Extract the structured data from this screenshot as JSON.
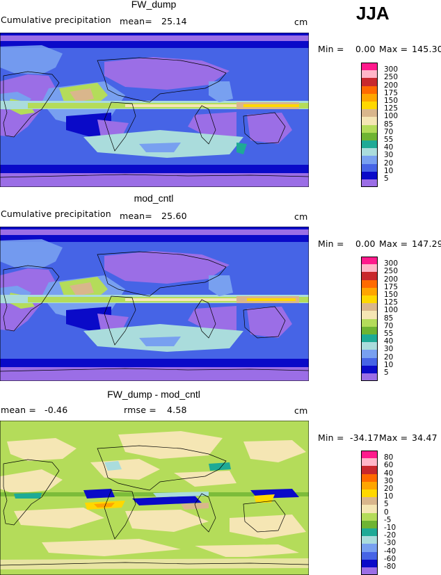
{
  "season": "JJA",
  "chart_data": [
    {
      "type": "heatmap",
      "title": "FW_dump",
      "subtitle": "Cumulative precipitation",
      "mean_label": "mean=",
      "mean_value": "25.14",
      "unit": "cm",
      "min_label": "Min =",
      "min_value": "0.00",
      "max_label": "Max =",
      "max_value": "145.30",
      "colorbar": {
        "levels": [
          "300",
          "250",
          "200",
          "175",
          "150",
          "125",
          "100",
          "85",
          "70",
          "55",
          "40",
          "30",
          "20",
          "10",
          "5"
        ],
        "colors": [
          "#ff1a8c",
          "#ffb6c8",
          "#c8282d",
          "#ff6a00",
          "#ffa500",
          "#ffd800",
          "#d9b68c",
          "#f5e6b4",
          "#b4dc5a",
          "#6eb432",
          "#1eaa96",
          "#aadcdc",
          "#78a0f0",
          "#4664e6",
          "#0a0ac8",
          "#9b6ee6"
        ]
      }
    },
    {
      "type": "heatmap",
      "title": "mod_cntl",
      "subtitle": "Cumulative precipitation",
      "mean_label": "mean=",
      "mean_value": "25.60",
      "unit": "cm",
      "min_label": "Min =",
      "min_value": "0.00",
      "max_label": "Max =",
      "max_value": "147.29",
      "colorbar": {
        "levels": [
          "300",
          "250",
          "200",
          "175",
          "150",
          "125",
          "100",
          "85",
          "70",
          "55",
          "40",
          "30",
          "20",
          "10",
          "5"
        ],
        "colors": [
          "#ff1a8c",
          "#ffb6c8",
          "#c8282d",
          "#ff6a00",
          "#ffa500",
          "#ffd800",
          "#d9b68c",
          "#f5e6b4",
          "#b4dc5a",
          "#6eb432",
          "#1eaa96",
          "#aadcdc",
          "#78a0f0",
          "#4664e6",
          "#0a0ac8",
          "#9b6ee6"
        ]
      }
    },
    {
      "type": "heatmap",
      "title": "FW_dump - mod_cntl",
      "mean_label": "mean =",
      "mean_value": "-0.46",
      "rmse_label": "rmse =",
      "rmse_value": "4.58",
      "unit": "cm",
      "min_label": "Min =",
      "min_value": "-34.17",
      "max_label": "Max =",
      "max_value": "34.47",
      "colorbar": {
        "levels": [
          "80",
          "60",
          "40",
          "30",
          "20",
          "10",
          "5",
          "0",
          "-5",
          "-10",
          "-20",
          "-30",
          "-40",
          "-60",
          "-80"
        ],
        "colors": [
          "#ff1a8c",
          "#ffb6c8",
          "#c8282d",
          "#ff6a00",
          "#ffa500",
          "#ffd800",
          "#d9b68c",
          "#f5e6b4",
          "#b4dc5a",
          "#6eb432",
          "#1eaa96",
          "#aadcdc",
          "#78a0f0",
          "#4664e6",
          "#0a0ac8",
          "#9b6ee6"
        ]
      }
    }
  ]
}
